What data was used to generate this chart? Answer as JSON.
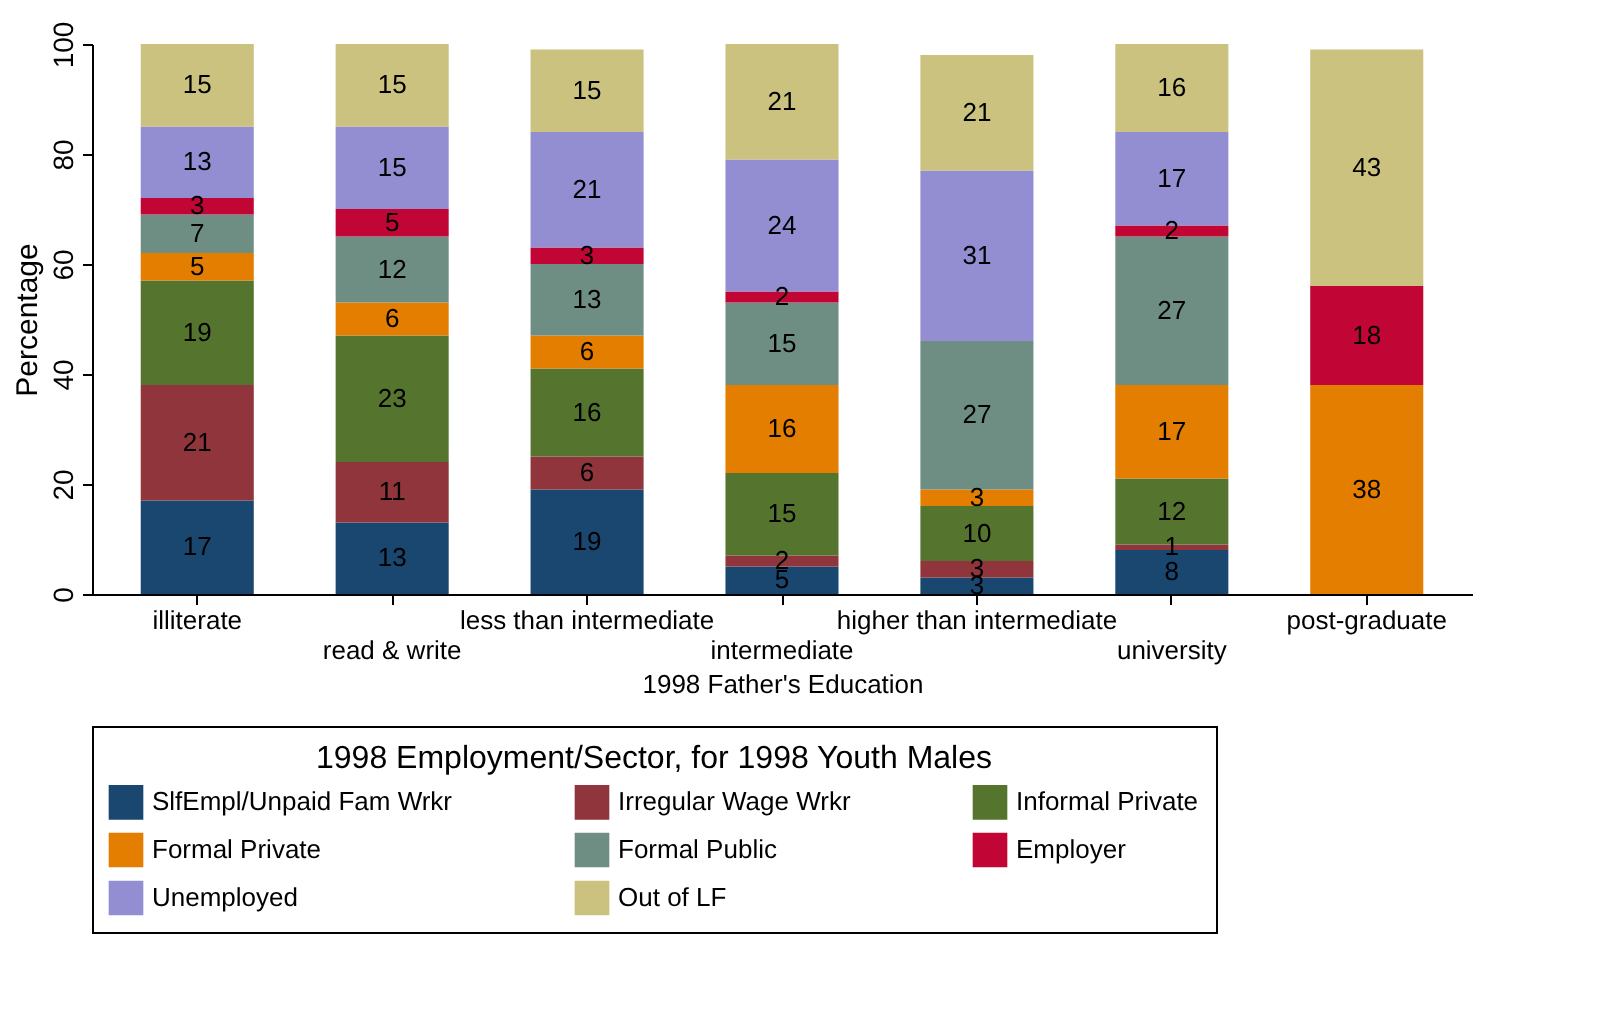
{
  "chart_data": {
    "type": "bar",
    "stacked": true,
    "data_labels": true,
    "xlabel": "1998 Father's Education",
    "ylabel": "Percentage",
    "legend_title": "1998 Employment/Sector, for 1998 Youth Males",
    "legend": "bottom",
    "grid": false,
    "categories": [
      "illiterate",
      "read & write",
      "less than intermediate",
      "intermediate",
      "higher than intermediate",
      "university",
      "post-graduate"
    ],
    "ylim": [
      0,
      100
    ],
    "yticks": [
      0,
      20,
      40,
      60,
      80,
      100
    ],
    "series": [
      {
        "name": "SlfEmpl/Unpaid Fam Wrkr",
        "color": "#1a476f",
        "values": [
          17,
          13,
          19,
          5,
          3,
          8,
          null
        ]
      },
      {
        "name": "Irregular Wage Wrkr",
        "color": "#90353b",
        "values": [
          21,
          11,
          6,
          2,
          3,
          1,
          null
        ]
      },
      {
        "name": "Informal Private",
        "color": "#55752f",
        "values": [
          19,
          23,
          16,
          15,
          10,
          12,
          null
        ]
      },
      {
        "name": "Formal Private",
        "color": "#e37e00",
        "values": [
          5,
          6,
          6,
          16,
          3,
          17,
          38
        ]
      },
      {
        "name": "Formal Public",
        "color": "#6e8e84",
        "values": [
          7,
          12,
          13,
          15,
          27,
          27,
          null
        ]
      },
      {
        "name": "Employer",
        "color": "#c10534",
        "values": [
          3,
          5,
          3,
          2,
          null,
          2,
          18
        ]
      },
      {
        "name": "Unemployed",
        "color": "#938dd2",
        "values": [
          13,
          15,
          21,
          24,
          31,
          17,
          null
        ]
      },
      {
        "name": "Out of LF",
        "color": "#cac27e",
        "values": [
          15,
          15,
          15,
          21,
          21,
          16,
          43
        ]
      }
    ]
  }
}
